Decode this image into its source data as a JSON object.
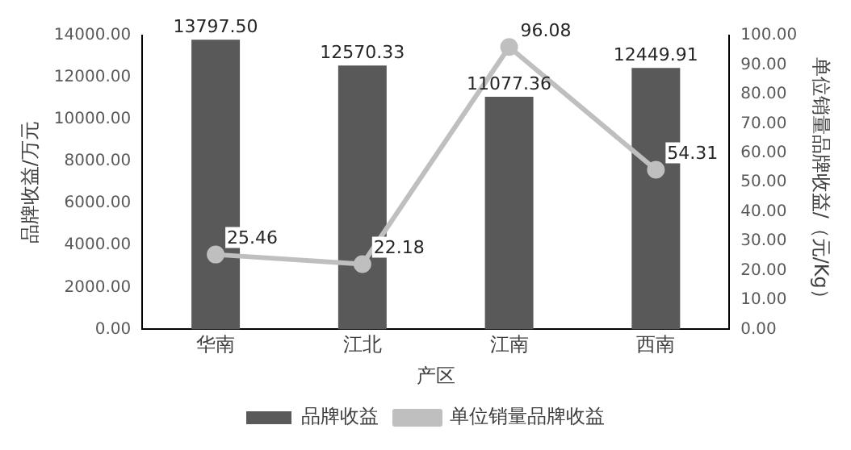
{
  "chart_data": {
    "type": "bar",
    "xlabel": "产区",
    "ylabel": "品牌收益/万元",
    "y2label": "单位销量品牌收益/（元/Kg）",
    "categories": [
      "华南",
      "江北",
      "江南",
      "西南"
    ],
    "series": [
      {
        "name": "品牌收益",
        "color": "#595959",
        "values": [
          13797.5,
          12570.33,
          11077.36,
          12449.91
        ],
        "value_labels": [
          "13797.50",
          "12570.33",
          "11077.36",
          "12449.91"
        ]
      },
      {
        "name": "单位销量品牌收益",
        "type": "line",
        "axis": "y2",
        "color": "#bfbfbf",
        "marker": "circle",
        "values": [
          25.46,
          22.18,
          96.08,
          54.31
        ],
        "value_labels": [
          "25.46",
          "22.18",
          "96.08",
          "54.31"
        ]
      }
    ],
    "ylim": [
      0,
      14000
    ],
    "yticks": [
      {
        "value": 0,
        "label": "0.00"
      },
      {
        "value": 2000,
        "label": "2000.00"
      },
      {
        "value": 4000,
        "label": "4000.00"
      },
      {
        "value": 6000,
        "label": "6000.00"
      },
      {
        "value": 8000,
        "label": "8000.00"
      },
      {
        "value": 10000,
        "label": "10000.00"
      },
      {
        "value": 12000,
        "label": "12000.00"
      },
      {
        "value": 14000,
        "label": "14000.00"
      }
    ],
    "y2lim": [
      0,
      100
    ],
    "y2ticks": [
      {
        "value": 0,
        "label": "0.00"
      },
      {
        "value": 10,
        "label": "10.00"
      },
      {
        "value": 20,
        "label": "20.00"
      },
      {
        "value": 30,
        "label": "30.00"
      },
      {
        "value": 40,
        "label": "40.00"
      },
      {
        "value": 50,
        "label": "50.00"
      },
      {
        "value": 60,
        "label": "60.00"
      },
      {
        "value": 70,
        "label": "70.00"
      },
      {
        "value": 80,
        "label": "80.00"
      },
      {
        "value": 90,
        "label": "90.00"
      },
      {
        "value": 100,
        "label": "100.00"
      }
    ],
    "grid": false,
    "legend": "bottom"
  }
}
